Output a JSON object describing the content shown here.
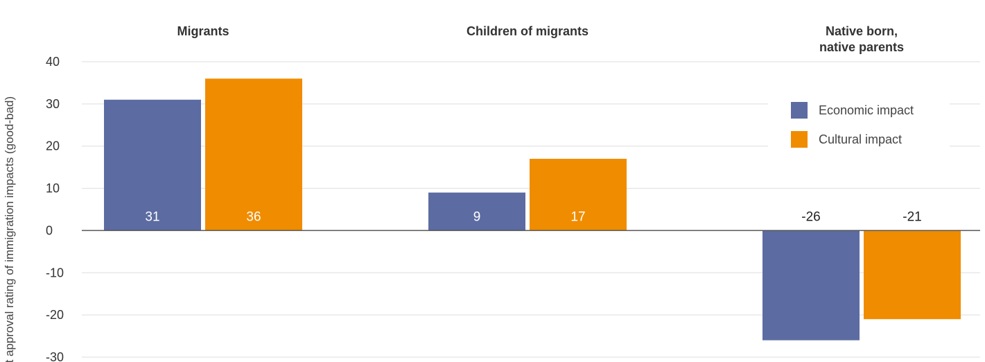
{
  "chart_data": {
    "type": "bar",
    "title": "",
    "xlabel": "",
    "ylabel": "Net approval rating of immigration impacts (good-bad)",
    "ylim": [
      -30,
      40
    ],
    "yticks": [
      40,
      30,
      20,
      10,
      0,
      -10,
      -20,
      -30
    ],
    "y_tick_labels": [
      "40",
      "30",
      "20",
      "10",
      "0",
      "-10",
      "-20",
      "-30"
    ],
    "categories": [
      "Migrants",
      "Children of migrants",
      "Native born, native parents"
    ],
    "category_lines": [
      [
        "Migrants"
      ],
      [
        "Children of migrants"
      ],
      [
        "Native born,",
        "native parents"
      ]
    ],
    "grid": true,
    "legend_position": "right",
    "series": [
      {
        "name": "Economic impact",
        "color": "#5c6ca2",
        "values": [
          31,
          9,
          -26
        ],
        "labels": [
          "31",
          "9",
          "-26"
        ]
      },
      {
        "name": "Cultural impact",
        "color": "#f08c00",
        "values": [
          36,
          17,
          -21
        ],
        "labels": [
          "36",
          "17",
          "-21"
        ]
      }
    ]
  }
}
